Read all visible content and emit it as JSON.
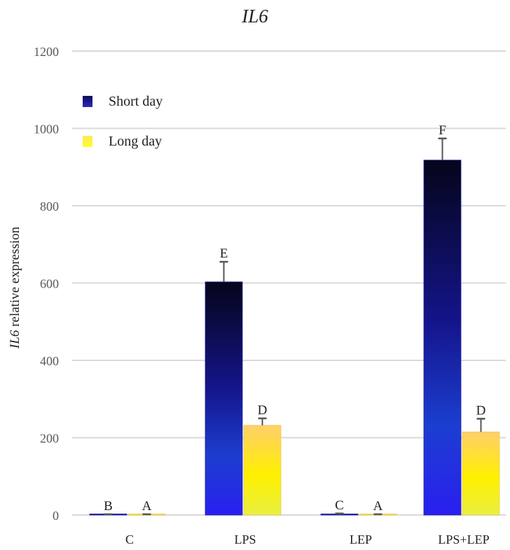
{
  "chart_data": {
    "type": "bar",
    "title": "IL6",
    "xlabel": "",
    "ylabel": "IL6 relative expression",
    "ylim": [
      0,
      1200
    ],
    "yticks": [
      0,
      200,
      400,
      600,
      800,
      1000,
      1200
    ],
    "grid": true,
    "legend_position": "upper-left",
    "categories": [
      "C",
      "LPS",
      "LEP",
      "LPS+LEP"
    ],
    "series": [
      {
        "name": "Short day",
        "color": "#1a1a8c",
        "gradient": [
          "#05051a",
          "#2a1fd8"
        ],
        "values": [
          1,
          603,
          1,
          918
        ],
        "errors": [
          1,
          52,
          3,
          56
        ],
        "significance": [
          "B",
          "E",
          "C",
          "F"
        ]
      },
      {
        "name": "Long day",
        "color": "#f5e61e",
        "gradient": [
          "#ffcf66",
          "#ffff00"
        ],
        "values": [
          1,
          232,
          1,
          215
        ],
        "errors": [
          1,
          18,
          1,
          34
        ],
        "significance": [
          "A",
          "D",
          "A",
          "D"
        ]
      }
    ]
  },
  "legend": {
    "items": [
      {
        "label": "Short day",
        "color": "#1a1a8c"
      },
      {
        "label": "Long day",
        "color": "#f5e61e"
      }
    ]
  },
  "title": "IL6",
  "ylabel": {
    "gene": "IL6",
    "rest": " relative expression"
  }
}
